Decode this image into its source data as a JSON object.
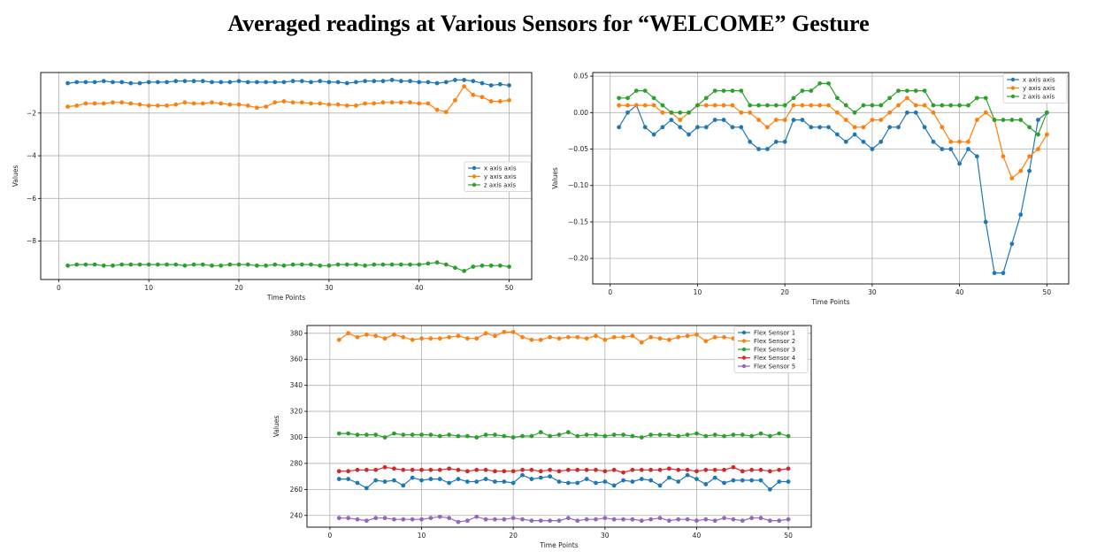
{
  "title": "Averaged readings at Various Sensors for  “WELCOME” Gesture",
  "chart_data": [
    {
      "type": "line",
      "xlabel": "Time Points",
      "ylabel": "Values",
      "xlim": [
        -2,
        52.5
      ],
      "ylim": [
        -9.8,
        -0.1
      ],
      "xticks": [
        0,
        10,
        20,
        30,
        40,
        50
      ],
      "yticks": [
        -2,
        -4,
        -6,
        -8
      ],
      "ytick_labels": [
        "−2",
        "−4",
        "−6",
        "−8"
      ],
      "grid": true,
      "legend": "center-right",
      "x": [
        1,
        2,
        3,
        4,
        5,
        6,
        7,
        8,
        9,
        10,
        11,
        12,
        13,
        14,
        15,
        16,
        17,
        18,
        19,
        20,
        21,
        22,
        23,
        24,
        25,
        26,
        27,
        28,
        29,
        30,
        31,
        32,
        33,
        34,
        35,
        36,
        37,
        38,
        39,
        40,
        41,
        42,
        43,
        44,
        45,
        46,
        47,
        48,
        49,
        50
      ],
      "series": [
        {
          "name": "x axis axis",
          "color": "#1f77b4",
          "values": [
            -0.6,
            -0.55,
            -0.55,
            -0.55,
            -0.5,
            -0.55,
            -0.55,
            -0.6,
            -0.6,
            -0.55,
            -0.55,
            -0.55,
            -0.5,
            -0.5,
            -0.5,
            -0.5,
            -0.55,
            -0.55,
            -0.55,
            -0.5,
            -0.55,
            -0.55,
            -0.55,
            -0.55,
            -0.55,
            -0.5,
            -0.5,
            -0.55,
            -0.5,
            -0.55,
            -0.55,
            -0.6,
            -0.55,
            -0.5,
            -0.5,
            -0.5,
            -0.45,
            -0.5,
            -0.5,
            -0.55,
            -0.55,
            -0.6,
            -0.55,
            -0.45,
            -0.45,
            -0.5,
            -0.6,
            -0.7,
            -0.65,
            -0.7
          ]
        },
        {
          "name": "y axis axis",
          "color": "#ff7f0e",
          "values": [
            -1.7,
            -1.65,
            -1.55,
            -1.55,
            -1.55,
            -1.5,
            -1.5,
            -1.55,
            -1.6,
            -1.65,
            -1.65,
            -1.65,
            -1.6,
            -1.5,
            -1.55,
            -1.55,
            -1.5,
            -1.55,
            -1.6,
            -1.6,
            -1.65,
            -1.75,
            -1.7,
            -1.5,
            -1.45,
            -1.5,
            -1.5,
            -1.55,
            -1.55,
            -1.6,
            -1.6,
            -1.65,
            -1.65,
            -1.55,
            -1.55,
            -1.5,
            -1.5,
            -1.5,
            -1.5,
            -1.55,
            -1.55,
            -1.85,
            -1.95,
            -1.4,
            -0.75,
            -1.15,
            -1.25,
            -1.45,
            -1.45,
            -1.4
          ]
        },
        {
          "name": "z axis axis",
          "color": "#2ca02c",
          "values": [
            -9.15,
            -9.1,
            -9.1,
            -9.1,
            -9.15,
            -9.15,
            -9.1,
            -9.1,
            -9.1,
            -9.1,
            -9.1,
            -9.1,
            -9.1,
            -9.15,
            -9.1,
            -9.1,
            -9.15,
            -9.15,
            -9.1,
            -9.1,
            -9.1,
            -9.15,
            -9.15,
            -9.1,
            -9.15,
            -9.1,
            -9.1,
            -9.1,
            -9.15,
            -9.15,
            -9.1,
            -9.1,
            -9.1,
            -9.15,
            -9.1,
            -9.1,
            -9.1,
            -9.1,
            -9.1,
            -9.1,
            -9.05,
            -9.0,
            -9.1,
            -9.25,
            -9.4,
            -9.2,
            -9.15,
            -9.15,
            -9.15,
            -9.2
          ]
        }
      ]
    },
    {
      "type": "line",
      "xlabel": "Time Points",
      "ylabel": "Values",
      "xlim": [
        -2,
        52.5
      ],
      "ylim": [
        -0.235,
        0.055
      ],
      "xticks": [
        0,
        10,
        20,
        30,
        40,
        50
      ],
      "yticks": [
        0.05,
        0.0,
        -0.05,
        -0.1,
        -0.15,
        -0.2
      ],
      "ytick_labels": [
        "0.05",
        "0.00",
        "−0.05",
        "−0.10",
        "−0.15",
        "−0.20"
      ],
      "grid": true,
      "legend": "top-right",
      "x": [
        1,
        2,
        3,
        4,
        5,
        6,
        7,
        8,
        9,
        10,
        11,
        12,
        13,
        14,
        15,
        16,
        17,
        18,
        19,
        20,
        21,
        22,
        23,
        24,
        25,
        26,
        27,
        28,
        29,
        30,
        31,
        32,
        33,
        34,
        35,
        36,
        37,
        38,
        39,
        40,
        41,
        42,
        43,
        44,
        45,
        46,
        47,
        48,
        49,
        50
      ],
      "series": [
        {
          "name": "x axis axis",
          "color": "#1f77b4",
          "values": [
            -0.02,
            0.0,
            0.01,
            -0.02,
            -0.03,
            -0.02,
            -0.01,
            -0.02,
            -0.03,
            -0.02,
            -0.02,
            -0.01,
            -0.01,
            -0.02,
            -0.02,
            -0.04,
            -0.05,
            -0.05,
            -0.04,
            -0.04,
            -0.01,
            -0.01,
            -0.02,
            -0.02,
            -0.02,
            -0.03,
            -0.04,
            -0.03,
            -0.04,
            -0.05,
            -0.04,
            -0.02,
            -0.02,
            0.0,
            0.0,
            -0.02,
            -0.04,
            -0.05,
            -0.05,
            -0.07,
            -0.05,
            -0.06,
            -0.15,
            -0.22,
            -0.22,
            -0.18,
            -0.14,
            -0.08,
            -0.01,
            0.0
          ]
        },
        {
          "name": "y axis axis",
          "color": "#ff7f0e",
          "values": [
            0.01,
            0.01,
            0.01,
            0.01,
            0.01,
            0.0,
            0.0,
            -0.01,
            0.0,
            0.01,
            0.01,
            0.01,
            0.01,
            0.01,
            0.0,
            0.0,
            -0.01,
            -0.02,
            -0.01,
            -0.01,
            0.01,
            0.01,
            0.01,
            0.01,
            0.01,
            0.0,
            -0.01,
            -0.02,
            -0.02,
            -0.01,
            -0.01,
            0.0,
            0.01,
            0.02,
            0.01,
            0.01,
            0.0,
            -0.02,
            -0.04,
            -0.04,
            -0.04,
            -0.01,
            0.0,
            -0.01,
            -0.06,
            -0.09,
            -0.08,
            -0.06,
            -0.05,
            -0.03
          ]
        },
        {
          "name": "z axis axis",
          "color": "#2ca02c",
          "values": [
            0.02,
            0.02,
            0.03,
            0.03,
            0.02,
            0.01,
            0.0,
            0.0,
            0.0,
            0.01,
            0.02,
            0.03,
            0.03,
            0.03,
            0.03,
            0.01,
            0.01,
            0.01,
            0.01,
            0.01,
            0.02,
            0.03,
            0.03,
            0.04,
            0.04,
            0.02,
            0.01,
            0.0,
            0.01,
            0.01,
            0.01,
            0.02,
            0.03,
            0.03,
            0.03,
            0.03,
            0.01,
            0.01,
            0.01,
            0.01,
            0.01,
            0.02,
            0.02,
            -0.01,
            -0.01,
            -0.01,
            -0.01,
            -0.02,
            -0.03,
            0.0
          ]
        }
      ]
    },
    {
      "type": "line",
      "xlabel": "Time Points",
      "ylabel": "Values",
      "xlim": [
        -2.5,
        52.5
      ],
      "ylim": [
        231,
        386
      ],
      "xticks": [
        0,
        10,
        20,
        30,
        40,
        50
      ],
      "yticks": [
        240,
        260,
        280,
        300,
        320,
        340,
        360,
        380
      ],
      "ytick_labels": [
        "240",
        "260",
        "280",
        "300",
        "320",
        "340",
        "360",
        "380"
      ],
      "grid": true,
      "legend": "top-right",
      "x": [
        1,
        2,
        3,
        4,
        5,
        6,
        7,
        8,
        9,
        10,
        11,
        12,
        13,
        14,
        15,
        16,
        17,
        18,
        19,
        20,
        21,
        22,
        23,
        24,
        25,
        26,
        27,
        28,
        29,
        30,
        31,
        32,
        33,
        34,
        35,
        36,
        37,
        38,
        39,
        40,
        41,
        42,
        43,
        44,
        45,
        46,
        47,
        48,
        49,
        50
      ],
      "series": [
        {
          "name": "Flex Sensor 1",
          "color": "#1f77b4",
          "values": [
            268,
            268,
            265,
            261,
            267,
            266,
            267,
            263,
            269,
            267,
            268,
            268,
            265,
            268,
            266,
            266,
            268,
            266,
            266,
            265,
            271,
            268,
            269,
            270,
            266,
            265,
            265,
            268,
            265,
            266,
            263,
            267,
            266,
            268,
            267,
            263,
            269,
            266,
            271,
            268,
            264,
            269,
            265,
            267,
            267,
            267,
            267,
            260,
            266,
            266
          ]
        },
        {
          "name": "Flex Sensor 2",
          "color": "#ff7f0e",
          "values": [
            375,
            380,
            377,
            379,
            378,
            376,
            379,
            377,
            375,
            376,
            376,
            376,
            377,
            378,
            376,
            376,
            380,
            378,
            381,
            381,
            377,
            375,
            375,
            377,
            376,
            377,
            377,
            376,
            378,
            375,
            377,
            377,
            378,
            373,
            377,
            376,
            375,
            377,
            378,
            379,
            374,
            377,
            377,
            376,
            376,
            377,
            378,
            377,
            377,
            377
          ]
        },
        {
          "name": "Flex Sensor 3",
          "color": "#2ca02c",
          "values": [
            303,
            303,
            302,
            302,
            302,
            300,
            303,
            302,
            302,
            302,
            302,
            301,
            302,
            301,
            301,
            300,
            302,
            302,
            301,
            300,
            301,
            301,
            304,
            301,
            302,
            304,
            301,
            302,
            302,
            301,
            302,
            302,
            301,
            300,
            302,
            302,
            302,
            301,
            302,
            303,
            301,
            302,
            301,
            302,
            302,
            301,
            303,
            301,
            303,
            301
          ]
        },
        {
          "name": "Flex Sensor 4",
          "color": "#d62728",
          "values": [
            274,
            274,
            275,
            275,
            275,
            277,
            276,
            275,
            275,
            275,
            275,
            275,
            276,
            275,
            274,
            275,
            275,
            274,
            274,
            274,
            275,
            275,
            274,
            275,
            274,
            275,
            275,
            275,
            275,
            274,
            275,
            273,
            275,
            275,
            275,
            275,
            276,
            275,
            275,
            274,
            275,
            275,
            275,
            277,
            274,
            275,
            275,
            274,
            275,
            276
          ]
        },
        {
          "name": "Flex Sensor 5",
          "color": "#9467bd",
          "values": [
            238,
            238,
            237,
            236,
            238,
            238,
            237,
            237,
            237,
            237,
            238,
            239,
            238,
            235,
            236,
            239,
            237,
            237,
            237,
            238,
            237,
            236,
            236,
            236,
            236,
            238,
            236,
            237,
            237,
            238,
            237,
            237,
            237,
            236,
            237,
            238,
            236,
            237,
            237,
            236,
            237,
            236,
            238,
            237,
            236,
            238,
            238,
            236,
            236,
            237
          ]
        }
      ]
    }
  ]
}
